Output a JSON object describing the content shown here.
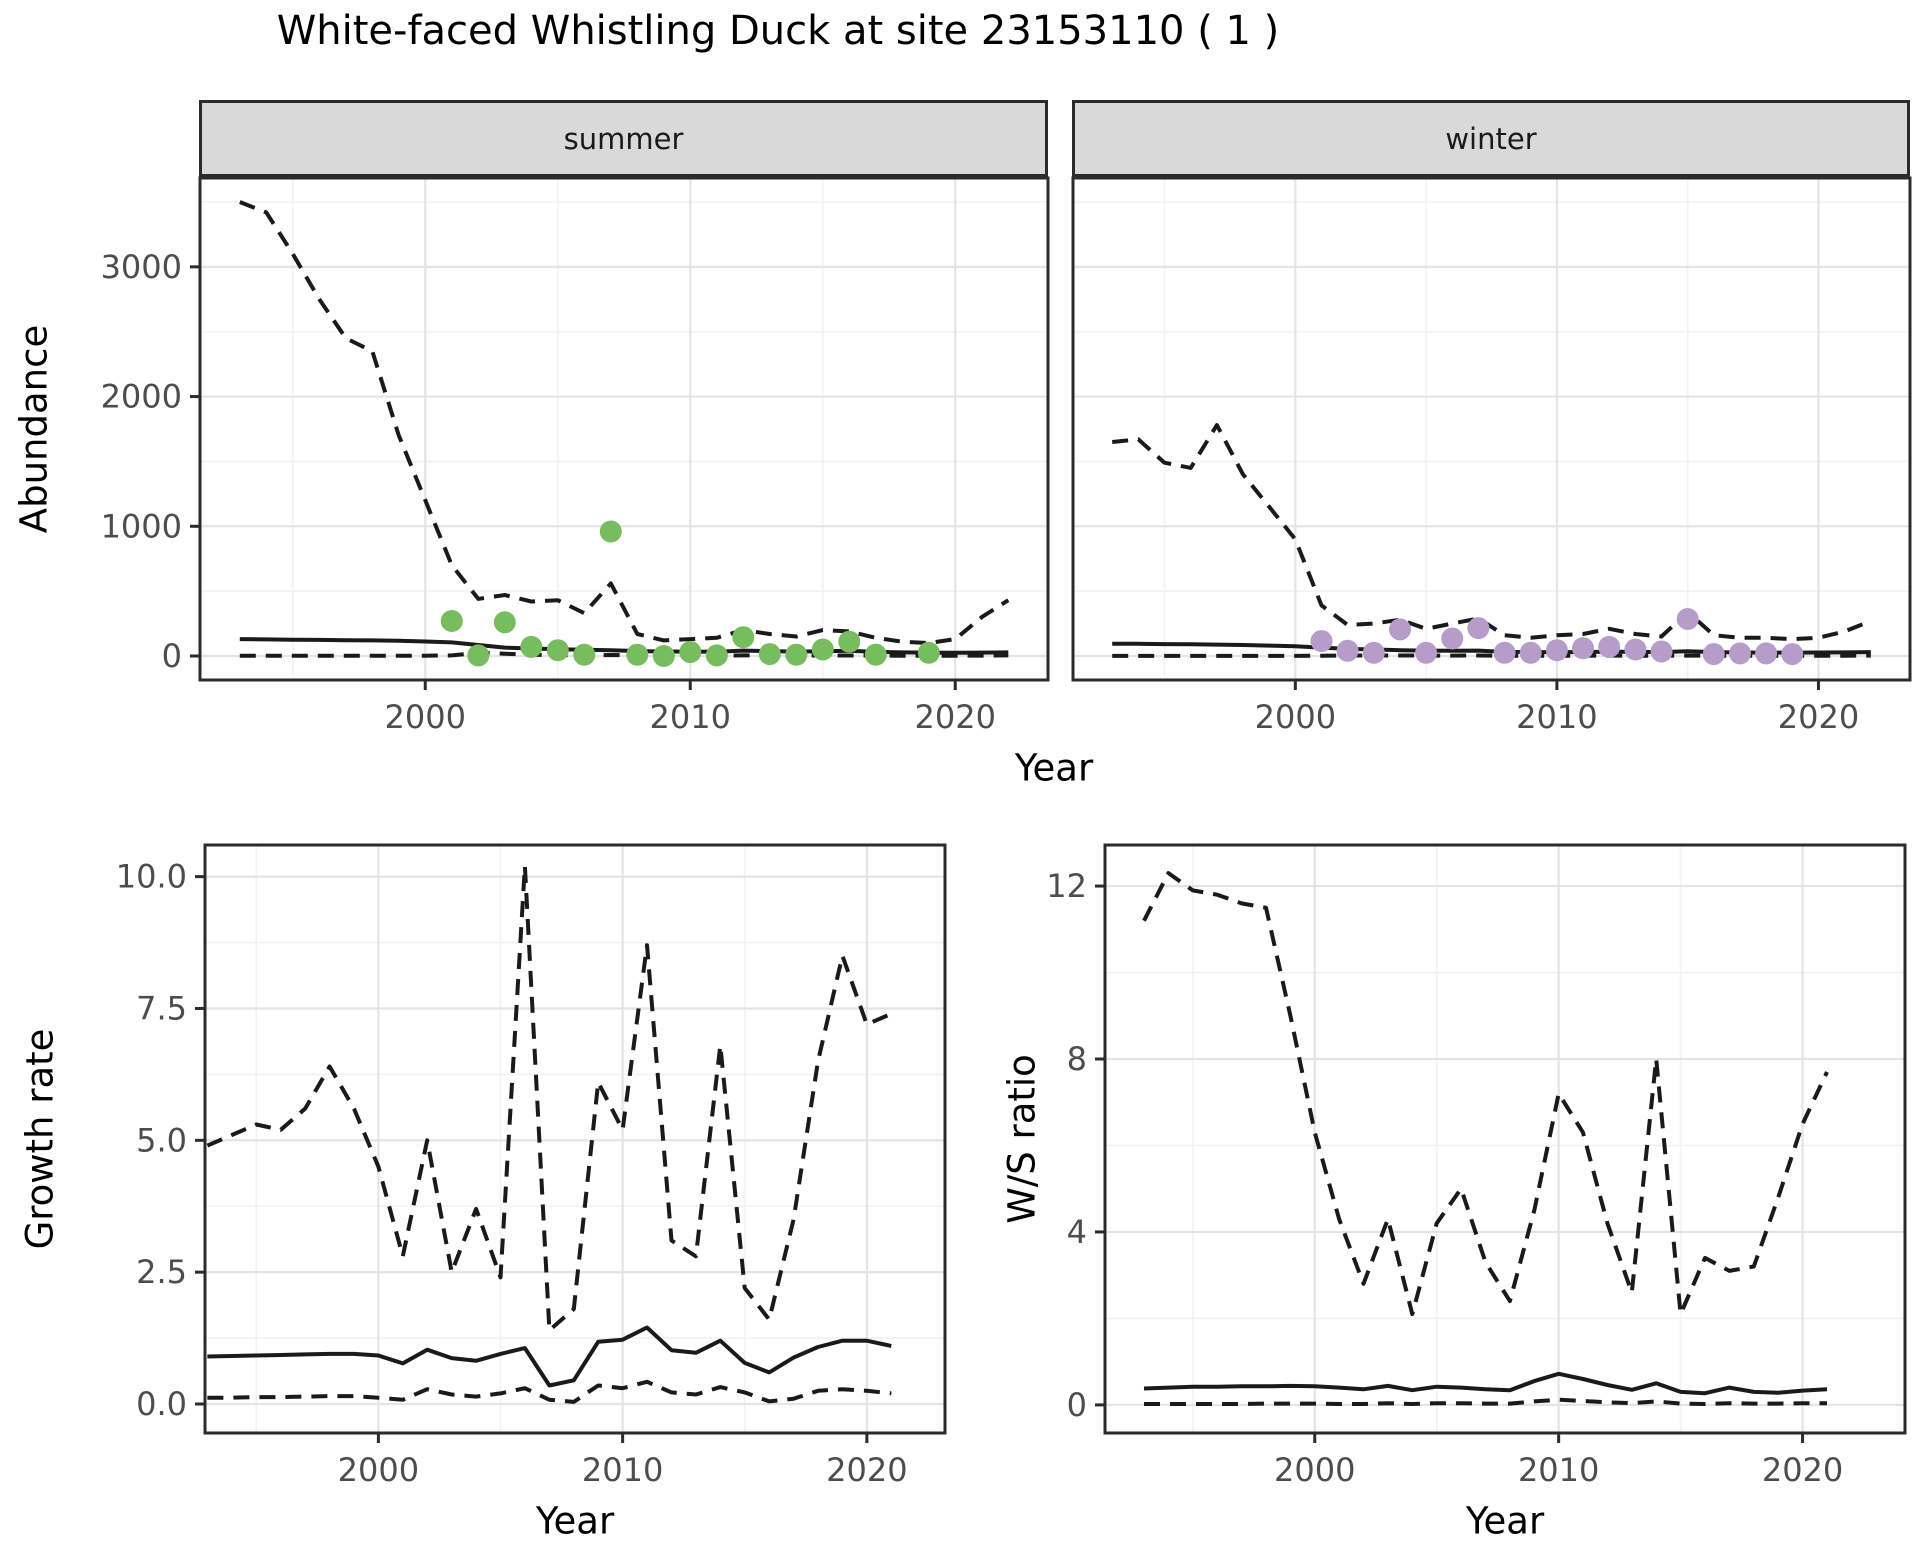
{
  "title": "White-faced Whistling Duck at site 23153110 ( 1 )",
  "shared_x_label": "Year",
  "colors": {
    "summer_point": "#77BC5E",
    "winter_point": "#B59CC9",
    "line": "#1A1A1A",
    "panel_border": "#2B2B2B",
    "strip_bg": "#D9D9D9",
    "grid_major": "#E4E4E4",
    "grid_minor": "#F2F2F2",
    "axis_text": "#4D4D4D"
  },
  "chart_data": [
    {
      "id": "summer",
      "type": "line",
      "facet_label": "summer",
      "xlabel": "Year",
      "ylabel": "Abundance",
      "xlim": [
        1991.5,
        2023.5
      ],
      "ylim": [
        -185,
        3685
      ],
      "xticks": [
        2000,
        2010,
        2020
      ],
      "xtick_labels": [
        "2000",
        "2010",
        "2020"
      ],
      "yticks": [
        0,
        1000,
        2000,
        3000
      ],
      "ytick_labels": [
        "0",
        "1000",
        "2000",
        "3000"
      ],
      "xminor": [
        1995,
        2005,
        2015
      ],
      "yminor": [
        500,
        1500,
        2500,
        3500
      ],
      "show_yticks": true,
      "grid": true,
      "legend": "none",
      "years": [
        1993,
        1994,
        1995,
        1996,
        1997,
        1998,
        1999,
        2000,
        2001,
        2002,
        2003,
        2004,
        2005,
        2006,
        2007,
        2008,
        2009,
        2010,
        2011,
        2012,
        2013,
        2014,
        2015,
        2016,
        2017,
        2018,
        2019,
        2020,
        2021,
        2022
      ],
      "series": [
        {
          "name": "ci-upper",
          "style": "dashed",
          "values": [
            3500,
            3420,
            3100,
            2750,
            2450,
            2350,
            1700,
            1200,
            700,
            440,
            470,
            420,
            430,
            330,
            560,
            170,
            120,
            130,
            140,
            200,
            170,
            150,
            200,
            190,
            140,
            110,
            100,
            130,
            300,
            430
          ]
        },
        {
          "name": "median",
          "style": "solid",
          "values": [
            130,
            128,
            126,
            124,
            122,
            120,
            118,
            112,
            105,
            85,
            65,
            58,
            52,
            48,
            45,
            38,
            35,
            34,
            33,
            42,
            38,
            34,
            36,
            40,
            32,
            28,
            26,
            25,
            26,
            28
          ]
        },
        {
          "name": "ci-lower",
          "style": "dashed",
          "values": [
            2,
            2,
            2,
            2,
            2,
            2,
            2,
            2,
            5,
            25,
            18,
            10,
            8,
            5,
            8,
            4,
            2,
            2,
            2,
            5,
            4,
            3,
            4,
            4,
            3,
            2,
            2,
            2,
            3,
            5
          ]
        }
      ],
      "points": {
        "name": "observed-abundance-summer",
        "color_key": "summer_point",
        "years": [
          2001,
          2002,
          2003,
          2004,
          2005,
          2006,
          2007,
          2008,
          2009,
          2010,
          2011,
          2012,
          2013,
          2014,
          2015,
          2016,
          2017,
          2019
        ],
        "values": [
          270,
          5,
          260,
          70,
          45,
          10,
          960,
          10,
          0,
          30,
          5,
          145,
          15,
          10,
          50,
          110,
          10,
          25
        ]
      }
    },
    {
      "id": "winter",
      "type": "line",
      "facet_label": "winter",
      "xlabel": "Year",
      "ylabel": "Abundance",
      "xlim": [
        1991.5,
        2023.5
      ],
      "ylim": [
        -185,
        3685
      ],
      "xticks": [
        2000,
        2010,
        2020
      ],
      "xtick_labels": [
        "2000",
        "2010",
        "2020"
      ],
      "yticks": [
        0,
        1000,
        2000,
        3000
      ],
      "ytick_labels": [
        "0",
        "1000",
        "2000",
        "3000"
      ],
      "xminor": [
        1995,
        2005,
        2015
      ],
      "yminor": [
        500,
        1500,
        2500,
        3500
      ],
      "show_yticks": false,
      "grid": true,
      "legend": "none",
      "years": [
        1993,
        1994,
        1995,
        1996,
        1997,
        1998,
        1999,
        2000,
        2001,
        2002,
        2003,
        2004,
        2005,
        2006,
        2007,
        2008,
        2009,
        2010,
        2011,
        2012,
        2013,
        2014,
        2015,
        2016,
        2017,
        2018,
        2019,
        2020,
        2021,
        2022
      ],
      "series": [
        {
          "name": "ci-upper",
          "style": "dashed",
          "values": [
            1650,
            1670,
            1490,
            1450,
            1780,
            1400,
            1150,
            900,
            390,
            240,
            250,
            280,
            210,
            250,
            290,
            160,
            140,
            160,
            170,
            210,
            170,
            150,
            340,
            160,
            140,
            140,
            130,
            140,
            190,
            270
          ]
        },
        {
          "name": "median",
          "style": "solid",
          "values": [
            95,
            94,
            92,
            90,
            88,
            85,
            80,
            75,
            65,
            55,
            50,
            45,
            42,
            40,
            42,
            32,
            30,
            30,
            30,
            34,
            32,
            30,
            36,
            30,
            27,
            26,
            26,
            27,
            28,
            30
          ]
        },
        {
          "name": "ci-lower",
          "style": "dashed",
          "values": [
            1,
            1,
            1,
            1,
            1,
            1,
            1,
            1,
            2,
            4,
            4,
            4,
            3,
            3,
            4,
            2,
            2,
            2,
            2,
            3,
            2,
            2,
            3,
            2,
            2,
            2,
            2,
            2,
            2,
            3
          ]
        }
      ],
      "points": {
        "name": "observed-abundance-winter",
        "color_key": "winter_point",
        "years": [
          2001,
          2002,
          2003,
          2004,
          2005,
          2006,
          2007,
          2008,
          2009,
          2010,
          2011,
          2012,
          2013,
          2014,
          2015,
          2016,
          2017,
          2018,
          2019
        ],
        "values": [
          115,
          40,
          25,
          205,
          25,
          135,
          215,
          25,
          25,
          45,
          60,
          70,
          50,
          35,
          285,
          15,
          20,
          20,
          15
        ]
      }
    },
    {
      "id": "growth",
      "type": "line",
      "facet_label": null,
      "xlabel": "Year",
      "ylabel": "Growth rate",
      "xlim": [
        1992.9,
        2023.2
      ],
      "ylim": [
        -0.55,
        10.6
      ],
      "xticks": [
        2000,
        2010,
        2020
      ],
      "xtick_labels": [
        "2000",
        "2010",
        "2020"
      ],
      "yticks": [
        0,
        2.5,
        5,
        7.5,
        10
      ],
      "ytick_labels": [
        "0.0",
        "2.5",
        "5.0",
        "7.5",
        "10.0"
      ],
      "xminor": [
        1995,
        2005,
        2015
      ],
      "yminor": [
        1.25,
        3.75,
        6.25,
        8.75
      ],
      "show_yticks": true,
      "grid": true,
      "legend": "none",
      "years": [
        1993,
        1994,
        1995,
        1996,
        1997,
        1998,
        1999,
        2000,
        2001,
        2002,
        2003,
        2004,
        2005,
        2006,
        2007,
        2008,
        2009,
        2010,
        2011,
        2012,
        2013,
        2014,
        2015,
        2016,
        2017,
        2018,
        2019,
        2020,
        2021
      ],
      "series": [
        {
          "name": "ci-upper",
          "style": "dashed",
          "values": [
            4.9,
            5.1,
            5.3,
            5.2,
            5.6,
            6.4,
            5.6,
            4.5,
            2.8,
            5.0,
            2.5,
            3.7,
            2.4,
            10.2,
            1.4,
            1.8,
            6.1,
            5.2,
            8.7,
            3.1,
            2.8,
            6.8,
            2.2,
            1.6,
            3.5,
            6.5,
            8.5,
            7.2,
            7.4
          ]
        },
        {
          "name": "median",
          "style": "solid",
          "values": [
            0.9,
            0.91,
            0.92,
            0.93,
            0.94,
            0.95,
            0.95,
            0.92,
            0.77,
            1.03,
            0.87,
            0.82,
            0.95,
            1.06,
            0.35,
            0.45,
            1.18,
            1.22,
            1.45,
            1.02,
            0.97,
            1.2,
            0.78,
            0.6,
            0.88,
            1.08,
            1.2,
            1.2,
            1.1
          ]
        },
        {
          "name": "ci-lower",
          "style": "dashed",
          "values": [
            0.12,
            0.12,
            0.13,
            0.13,
            0.14,
            0.15,
            0.15,
            0.12,
            0.08,
            0.28,
            0.18,
            0.14,
            0.2,
            0.3,
            0.08,
            0.04,
            0.35,
            0.3,
            0.42,
            0.22,
            0.18,
            0.32,
            0.22,
            0.05,
            0.1,
            0.25,
            0.28,
            0.25,
            0.2
          ]
        }
      ],
      "points": null
    },
    {
      "id": "ws",
      "type": "line",
      "facet_label": null,
      "xlabel": "Year",
      "ylabel": "W/S ratio",
      "xlim": [
        1991.4,
        2024.2
      ],
      "ylim": [
        -0.65,
        12.95
      ],
      "xticks": [
        2000,
        2010,
        2020
      ],
      "xtick_labels": [
        "2000",
        "2010",
        "2020"
      ],
      "yticks": [
        0,
        4,
        8,
        12
      ],
      "ytick_labels": [
        "0",
        "4",
        "8",
        "12"
      ],
      "xminor": [
        1995,
        2005,
        2015
      ],
      "yminor": [
        2,
        6,
        10
      ],
      "show_yticks": true,
      "grid": true,
      "legend": "none",
      "years": [
        1993,
        1994,
        1995,
        1996,
        1997,
        1998,
        1999,
        2000,
        2001,
        2002,
        2003,
        2004,
        2005,
        2006,
        2007,
        2008,
        2009,
        2010,
        2011,
        2012,
        2013,
        2014,
        2015,
        2016,
        2017,
        2018,
        2019,
        2020,
        2021
      ],
      "series": [
        {
          "name": "ci-upper",
          "style": "dashed",
          "values": [
            11.2,
            12.3,
            11.9,
            11.8,
            11.6,
            11.5,
            9.0,
            6.3,
            4.3,
            2.8,
            4.3,
            2.1,
            4.2,
            5.0,
            3.3,
            2.4,
            4.5,
            7.2,
            6.3,
            4.2,
            2.6,
            8.0,
            2.1,
            3.4,
            3.1,
            3.2,
            4.8,
            6.5,
            7.7
          ]
        },
        {
          "name": "median",
          "style": "solid",
          "values": [
            0.38,
            0.4,
            0.42,
            0.42,
            0.43,
            0.43,
            0.44,
            0.43,
            0.4,
            0.36,
            0.44,
            0.34,
            0.42,
            0.4,
            0.36,
            0.34,
            0.55,
            0.72,
            0.6,
            0.46,
            0.35,
            0.5,
            0.3,
            0.27,
            0.4,
            0.3,
            0.28,
            0.33,
            0.36
          ]
        },
        {
          "name": "ci-lower",
          "style": "dashed",
          "values": [
            0.02,
            0.02,
            0.02,
            0.02,
            0.02,
            0.03,
            0.03,
            0.03,
            0.02,
            0.02,
            0.04,
            0.02,
            0.04,
            0.04,
            0.03,
            0.03,
            0.08,
            0.12,
            0.09,
            0.06,
            0.04,
            0.08,
            0.03,
            0.02,
            0.04,
            0.03,
            0.03,
            0.04,
            0.04
          ]
        }
      ],
      "points": null
    }
  ]
}
